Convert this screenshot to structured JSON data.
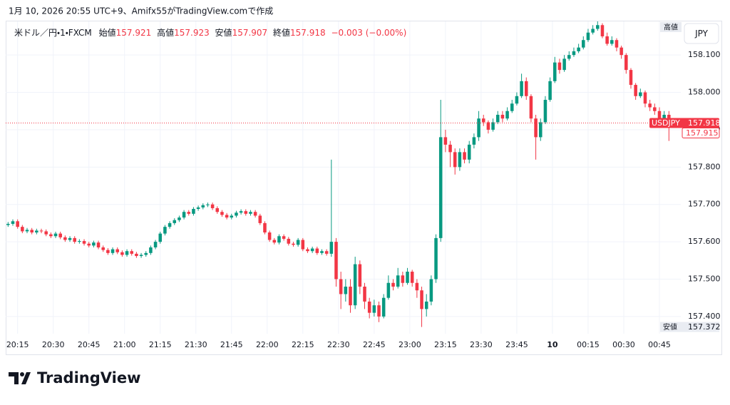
{
  "header": "1月 10, 2026 20:55 UTC+9、Amifx55がTradingView.comで作成",
  "logo": "TradingView",
  "chart_data": {
    "type": "candlestick",
    "symbol_line": "米ドル／円・1・FXCM",
    "legend": {
      "open_label": "始値",
      "open": 157.921,
      "high_label": "高値",
      "high": 157.923,
      "low_label": "安値",
      "low": 157.907,
      "close_label": "終値",
      "close": 157.918,
      "change": "−0.003 (−0.00%)"
    },
    "currency": "JPY",
    "high_marker": "高値",
    "low_marker": {
      "label": "安値",
      "value": 157.372
    },
    "last_price": {
      "label": "USDJPY",
      "value": 157.918
    },
    "bid": 157.915,
    "up_color": "#089981",
    "down_color": "#f23645",
    "grid": true,
    "xlim": [
      -0.5,
      141.5
    ],
    "xticks": [
      {
        "value": 2,
        "label": "20:15"
      },
      {
        "value": 9.5,
        "label": "20:30"
      },
      {
        "value": 17,
        "label": "20:45"
      },
      {
        "value": 24.5,
        "label": "21:00"
      },
      {
        "value": 32,
        "label": "21:15"
      },
      {
        "value": 39.5,
        "label": "21:30"
      },
      {
        "value": 47,
        "label": "21:45"
      },
      {
        "value": 54.5,
        "label": "22:00"
      },
      {
        "value": 62,
        "label": "22:15"
      },
      {
        "value": 69.5,
        "label": "22:30"
      },
      {
        "value": 77,
        "label": "22:45"
      },
      {
        "value": 84.5,
        "label": "23:00"
      },
      {
        "value": 92,
        "label": "23:15"
      },
      {
        "value": 99.5,
        "label": "23:30"
      },
      {
        "value": 107,
        "label": "23:45"
      },
      {
        "value": 114.5,
        "label": "10"
      },
      {
        "value": 122,
        "label": "00:15"
      },
      {
        "value": 129.5,
        "label": "00:30"
      },
      {
        "value": 137,
        "label": "00:45"
      }
    ],
    "ylim": [
      157.354,
      158.19
    ],
    "yticks": [
      {
        "value": 157.4,
        "label": "157.400"
      },
      {
        "value": 157.5,
        "label": "157.500"
      },
      {
        "value": 157.6,
        "label": "157.600"
      },
      {
        "value": 157.7,
        "label": "157.700"
      },
      {
        "value": 157.8,
        "label": "157.800"
      },
      {
        "value": 157.9,
        "label": "157.900"
      },
      {
        "value": 158.0,
        "label": "158.000"
      },
      {
        "value": 158.1,
        "label": "158.100"
      }
    ],
    "open": [
      157.645,
      157.648,
      157.655,
      157.64,
      157.628,
      157.632,
      157.625,
      157.63,
      157.628,
      157.62,
      157.615,
      157.622,
      157.612,
      157.605,
      157.61,
      157.6,
      157.602,
      157.595,
      157.59,
      157.598,
      157.585,
      157.578,
      157.57,
      157.58,
      157.572,
      157.565,
      157.575,
      157.568,
      157.562,
      157.565,
      157.57,
      157.585,
      157.6,
      157.622,
      157.64,
      157.65,
      157.658,
      157.665,
      157.68,
      157.675,
      157.688,
      157.692,
      157.698,
      157.7,
      157.69,
      157.68,
      157.672,
      157.665,
      157.67,
      157.678,
      157.682,
      157.675,
      157.68,
      157.67,
      157.65,
      157.625,
      157.605,
      157.598,
      157.615,
      157.608,
      157.595,
      157.592,
      157.605,
      157.58,
      157.575,
      157.582,
      157.57,
      157.575,
      157.568,
      157.6,
      157.5,
      157.46,
      157.48,
      157.43,
      157.54,
      157.48,
      157.44,
      157.41,
      157.43,
      157.4,
      157.45,
      157.49,
      157.48,
      157.51,
      157.49,
      157.52,
      157.49,
      157.47,
      157.42,
      157.44,
      157.5,
      157.61,
      157.88,
      157.86,
      157.84,
      157.8,
      157.84,
      157.82,
      157.86,
      157.88,
      157.93,
      157.92,
      157.9,
      157.92,
      157.94,
      157.93,
      157.95,
      157.97,
      157.99,
      158.03,
      157.99,
      157.93,
      157.88,
      157.92,
      157.98,
      158.03,
      158.08,
      158.06,
      158.09,
      158.1,
      158.11,
      158.12,
      158.14,
      158.16,
      158.17,
      158.18,
      158.15,
      158.13,
      158.14,
      158.12,
      158.1,
      158.06,
      158.02,
      157.99,
      158.0,
      157.97,
      157.96,
      157.95,
      157.93,
      157.94,
      157.921
    ],
    "high": [
      157.653,
      157.66,
      157.66,
      157.645,
      157.637,
      157.637,
      157.635,
      157.635,
      157.633,
      157.625,
      157.627,
      157.627,
      157.617,
      157.615,
      157.615,
      157.607,
      157.607,
      157.6,
      157.603,
      157.603,
      157.59,
      157.583,
      157.585,
      157.585,
      157.577,
      157.58,
      157.58,
      157.573,
      157.57,
      157.575,
      157.59,
      157.605,
      157.627,
      157.645,
      157.655,
      157.663,
      157.67,
      157.685,
      157.685,
      157.693,
      157.697,
      157.703,
      157.705,
      157.705,
      157.695,
      157.685,
      157.677,
      157.675,
      157.683,
      157.687,
      157.687,
      157.685,
      157.685,
      157.675,
      157.655,
      157.63,
      157.61,
      157.62,
      157.62,
      157.613,
      157.6,
      157.61,
      157.61,
      157.585,
      157.587,
      157.587,
      157.58,
      157.58,
      157.82,
      157.61,
      157.52,
      157.5,
      157.5,
      157.56,
      157.55,
      157.49,
      157.45,
      157.445,
      157.44,
      157.46,
      157.51,
      157.5,
      157.53,
      157.52,
      157.53,
      157.525,
      157.5,
      157.48,
      157.46,
      157.51,
      157.62,
      157.98,
      157.9,
      157.87,
      157.85,
      157.85,
      157.85,
      157.87,
      157.89,
      157.95,
      157.94,
      157.925,
      157.93,
      157.95,
      157.95,
      157.96,
      157.98,
      158.0,
      158.05,
      158.04,
      157.995,
      157.94,
      157.93,
      157.99,
      158.04,
      158.095,
      158.09,
      158.1,
      158.11,
      158.12,
      158.13,
      158.15,
      158.17,
      158.18,
      158.19,
      158.185,
      158.16,
      158.15,
      158.145,
      158.125,
      158.105,
      158.065,
      158.025,
      158.01,
      158.005,
      157.98,
      157.97,
      157.96,
      157.95,
      157.95,
      157.923
    ],
    "low": [
      157.64,
      157.643,
      157.635,
      157.623,
      157.623,
      157.62,
      157.62,
      157.623,
      157.615,
      157.61,
      157.61,
      157.607,
      157.6,
      157.6,
      157.595,
      157.595,
      157.59,
      157.585,
      157.585,
      157.58,
      157.573,
      157.565,
      157.565,
      157.567,
      157.56,
      157.56,
      157.563,
      157.557,
      157.557,
      157.56,
      157.565,
      157.58,
      157.595,
      157.617,
      157.635,
      157.645,
      157.653,
      157.66,
      157.67,
      157.67,
      157.683,
      157.687,
      157.693,
      157.685,
      157.675,
      157.667,
      157.66,
      157.66,
      157.665,
      157.673,
      157.67,
      157.67,
      157.665,
      157.645,
      157.62,
      157.6,
      157.593,
      157.593,
      157.603,
      157.59,
      157.587,
      157.587,
      157.575,
      157.57,
      157.57,
      157.565,
      157.565,
      157.563,
      157.56,
      157.48,
      157.42,
      157.44,
      157.41,
      157.42,
      157.46,
      157.42,
      157.395,
      157.4,
      157.385,
      157.395,
      157.445,
      157.47,
      157.475,
      157.48,
      157.485,
      157.48,
      157.45,
      157.372,
      157.4,
      157.43,
      157.49,
      157.6,
      157.84,
      157.8,
      157.78,
      157.79,
      157.81,
      157.81,
      157.85,
      157.87,
      157.91,
      157.89,
      157.895,
      157.915,
      157.92,
      157.925,
      157.945,
      157.965,
      157.985,
      157.98,
      157.92,
      157.82,
      157.87,
      157.915,
      157.975,
      158.025,
      158.05,
      158.055,
      158.085,
      158.095,
      158.105,
      158.115,
      158.135,
      158.155,
      158.165,
      158.145,
      158.125,
      158.125,
      158.11,
      158.09,
      158.05,
      158.01,
      157.98,
      157.985,
      157.96,
      157.95,
      157.94,
      157.92,
      157.915,
      157.87,
      157.907
    ],
    "close": [
      157.648,
      157.655,
      157.64,
      157.628,
      157.632,
      157.625,
      157.63,
      157.628,
      157.62,
      157.615,
      157.622,
      157.612,
      157.605,
      157.61,
      157.6,
      157.602,
      157.595,
      157.59,
      157.598,
      157.585,
      157.578,
      157.57,
      157.58,
      157.572,
      157.565,
      157.575,
      157.568,
      157.562,
      157.565,
      157.57,
      157.585,
      157.6,
      157.622,
      157.64,
      157.65,
      157.658,
      157.665,
      157.68,
      157.675,
      157.688,
      157.692,
      157.698,
      157.7,
      157.69,
      157.68,
      157.672,
      157.665,
      157.67,
      157.678,
      157.682,
      157.675,
      157.68,
      157.67,
      157.65,
      157.625,
      157.605,
      157.598,
      157.615,
      157.608,
      157.595,
      157.592,
      157.605,
      157.58,
      157.575,
      157.582,
      157.57,
      157.575,
      157.568,
      157.6,
      157.5,
      157.46,
      157.48,
      157.43,
      157.54,
      157.48,
      157.44,
      157.41,
      157.43,
      157.4,
      157.45,
      157.49,
      157.48,
      157.51,
      157.49,
      157.52,
      157.49,
      157.47,
      157.42,
      157.44,
      157.5,
      157.61,
      157.88,
      157.86,
      157.84,
      157.8,
      157.84,
      157.82,
      157.86,
      157.88,
      157.93,
      157.92,
      157.9,
      157.92,
      157.94,
      157.93,
      157.95,
      157.97,
      157.99,
      158.03,
      157.99,
      157.93,
      157.88,
      157.92,
      157.98,
      158.03,
      158.08,
      158.06,
      158.09,
      158.1,
      158.11,
      158.12,
      158.14,
      158.16,
      158.17,
      158.18,
      158.15,
      158.13,
      158.14,
      158.12,
      158.1,
      158.06,
      158.02,
      157.99,
      158.0,
      157.97,
      157.96,
      157.95,
      157.93,
      157.94,
      157.921,
      157.918
    ]
  }
}
